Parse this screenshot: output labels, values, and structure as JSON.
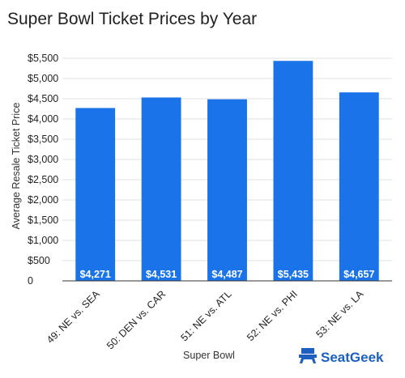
{
  "chart_data": {
    "type": "bar",
    "title": "Super Bowl Ticket Prices by Year",
    "xlabel": "Super Bowl",
    "ylabel": "Average Resale Ticket Price",
    "categories": [
      "49: NE vs. SEA",
      "50: DEN vs. CAR",
      "51: NE vs. ATL",
      "52: NE vs. PHI",
      "53: NE vs. LA"
    ],
    "values": [
      4271,
      4531,
      4487,
      5435,
      4657
    ],
    "data_labels": [
      "$4,271",
      "$4,531",
      "$4,487",
      "$5,435",
      "$4,657"
    ],
    "yticks": [
      0,
      500,
      1000,
      1500,
      2000,
      2500,
      3000,
      3500,
      4000,
      4500,
      5000,
      5500
    ],
    "ytick_labels": [
      "0",
      "$500",
      "$1,000",
      "$1,500",
      "$2,000",
      "$2,500",
      "$3,000",
      "$3,500",
      "$4,000",
      "$4,500",
      "$5,000",
      "$5,500"
    ],
    "ylim": [
      0,
      5500
    ],
    "grid": true,
    "bar_color": "#1a73e8"
  },
  "brand": {
    "name": "SeatGeek",
    "icon": "seat-icon",
    "color": "#1d5fbf"
  }
}
